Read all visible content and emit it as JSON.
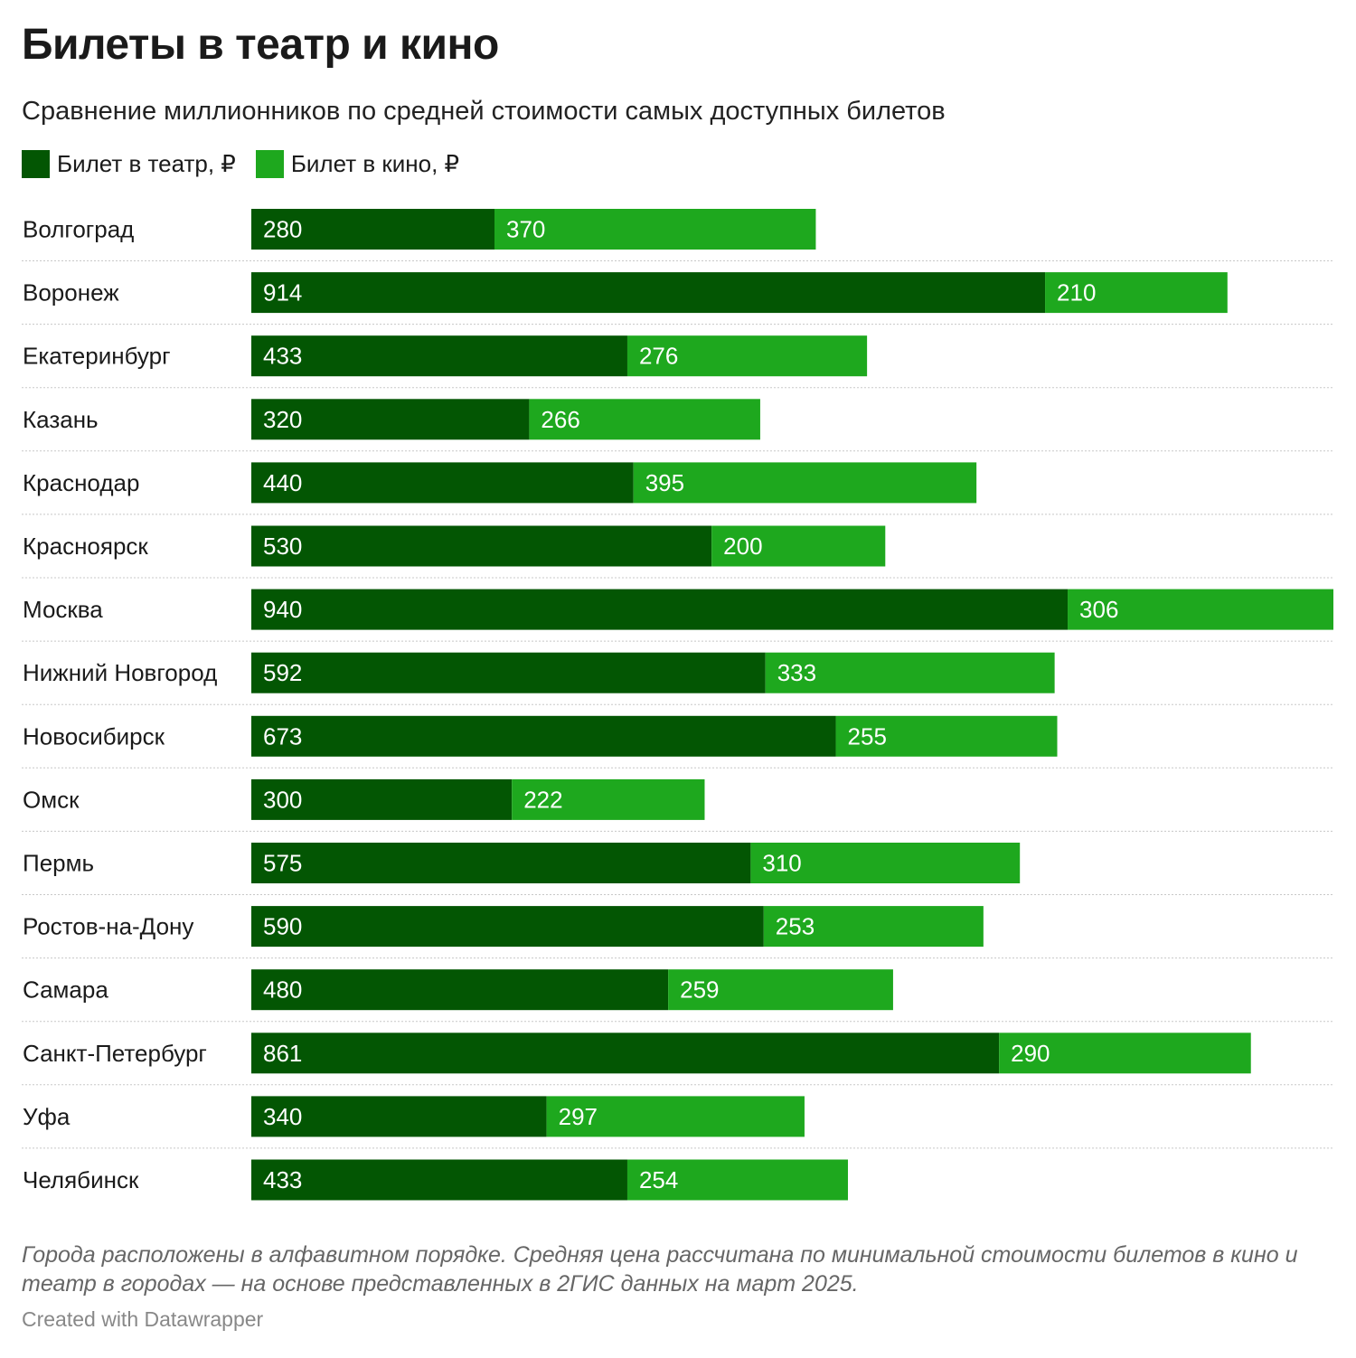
{
  "title": "Билеты в театр и кино",
  "subtitle": "Сравнение миллионников по средней стоимости самых доступных билетов",
  "legend": [
    {
      "label": "Билет в театр, ₽",
      "color": "#035603"
    },
    {
      "label": "Билет в кино, ₽",
      "color": "#1ea81e"
    }
  ],
  "note": "Города расположены в алфавитном порядке. Средняя цена рассчитана по минимальной стоимости билетов в кино и театр в городах — на основе представленных в 2ГИС данных на март 2025.",
  "credit": "Created with Datawrapper",
  "chart_data": {
    "type": "bar",
    "orientation": "horizontal",
    "stacked": true,
    "categories": [
      "Волгоград",
      "Воронеж",
      "Екатеринбург",
      "Казань",
      "Краснодар",
      "Красноярск",
      "Москва",
      "Нижний Новгород",
      "Новосибирск",
      "Омск",
      "Пермь",
      "Ростов-на-Дону",
      "Самара",
      "Санкт-Петербург",
      "Уфа",
      "Челябинск"
    ],
    "series": [
      {
        "name": "Билет в театр, ₽",
        "color": "#035603",
        "values": [
          280,
          914,
          433,
          320,
          440,
          530,
          940,
          592,
          673,
          300,
          575,
          590,
          480,
          861,
          340,
          433
        ]
      },
      {
        "name": "Билет в кино, ₽",
        "color": "#1ea81e",
        "values": [
          370,
          210,
          276,
          266,
          395,
          200,
          306,
          333,
          255,
          222,
          310,
          253,
          259,
          290,
          297,
          254
        ]
      }
    ],
    "xlim": [
      0,
      1246
    ],
    "grid": false,
    "legend_position": "top-left"
  }
}
